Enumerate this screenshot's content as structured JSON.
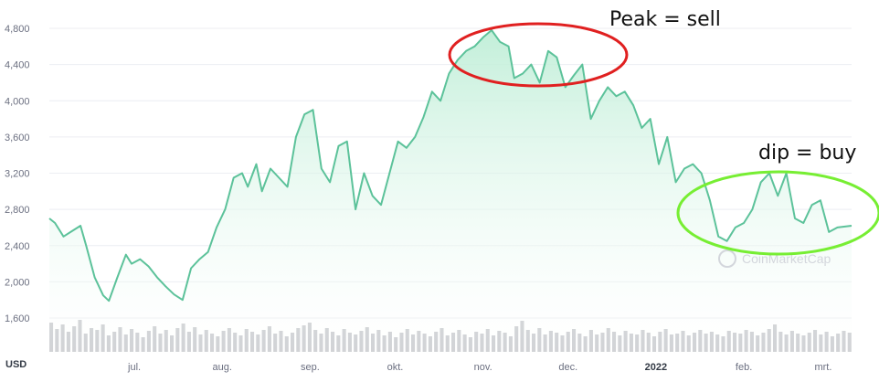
{
  "chart_data": {
    "type": "area",
    "currency_label": "USD",
    "watermark": "CoinMarketCap",
    "y_ticks": [
      1600,
      2000,
      2400,
      2800,
      3200,
      3600,
      4000,
      4400,
      4800
    ],
    "y_tick_labels": [
      "1,600",
      "2,000",
      "2,400",
      "2,800",
      "3,200",
      "3,600",
      "4,000",
      "4,400",
      "4,800"
    ],
    "ylim": [
      1300,
      4950
    ],
    "x_tick_labels": [
      {
        "label": "jul.",
        "day": 30,
        "bold": false
      },
      {
        "label": "aug.",
        "day": 61,
        "bold": false
      },
      {
        "label": "sep.",
        "day": 92,
        "bold": false
      },
      {
        "label": "okt.",
        "day": 122,
        "bold": false
      },
      {
        "label": "nov.",
        "day": 153,
        "bold": false
      },
      {
        "label": "dec.",
        "day": 183,
        "bold": false
      },
      {
        "label": "2022",
        "day": 214,
        "bold": true
      },
      {
        "label": "feb.",
        "day": 245,
        "bold": false
      },
      {
        "label": "mrt.",
        "day": 273,
        "bold": false
      }
    ],
    "x_range_days": [
      0,
      283
    ],
    "series": [
      {
        "x_day": [
          0,
          2,
          5,
          8,
          11,
          13,
          16,
          19,
          21,
          24,
          27,
          29,
          32,
          35,
          38,
          41,
          44,
          47,
          50,
          53,
          56,
          59,
          62,
          65,
          68,
          70,
          73,
          75,
          78,
          81,
          84,
          87,
          90,
          93,
          96,
          99,
          102,
          105,
          108,
          111,
          114,
          117,
          120,
          123,
          126,
          129,
          132,
          135,
          138,
          141,
          144,
          147,
          150,
          153,
          156,
          159,
          162,
          164,
          167,
          170,
          173,
          176,
          179,
          182,
          185,
          188,
          191,
          194,
          197,
          200,
          203,
          206,
          209,
          212,
          215,
          218,
          221,
          224,
          227,
          230,
          233,
          236,
          239,
          242,
          245,
          248,
          251,
          254,
          257,
          260,
          263,
          266,
          269,
          272,
          275,
          278,
          283
        ],
        "y": [
          2700,
          2650,
          2500,
          2560,
          2620,
          2400,
          2050,
          1850,
          1790,
          2050,
          2300,
          2200,
          2250,
          2170,
          2050,
          1950,
          1860,
          1800,
          2150,
          2250,
          2330,
          2600,
          2800,
          3150,
          3200,
          3050,
          3300,
          3000,
          3250,
          3150,
          3050,
          3600,
          3850,
          3900,
          3250,
          3100,
          3500,
          3550,
          2800,
          3200,
          2950,
          2850,
          3200,
          3550,
          3480,
          3600,
          3820,
          4100,
          4000,
          4300,
          4450,
          4550,
          4600,
          4700,
          4780,
          4650,
          4600,
          4250,
          4300,
          4400,
          4200,
          4550,
          4480,
          4150,
          4280,
          4400,
          3800,
          4000,
          4150,
          4050,
          4100,
          3950,
          3700,
          3800,
          3300,
          3600,
          3100,
          3250,
          3300,
          3200,
          2900,
          2500,
          2450,
          2600,
          2650,
          2800,
          3100,
          3200,
          2950,
          3200,
          2700,
          2650,
          2850,
          2900,
          2550,
          2600,
          2620
        ]
      }
    ],
    "volume_bars": [
      32,
      25,
      30,
      22,
      28,
      35,
      20,
      26,
      24,
      30,
      18,
      22,
      27,
      19,
      25,
      21,
      16,
      23,
      28,
      20,
      24,
      18,
      26,
      31,
      22,
      27,
      19,
      24,
      20,
      17,
      23,
      26,
      21,
      18,
      25,
      22,
      19,
      24,
      28,
      20,
      23,
      17,
      21,
      26,
      29,
      32,
      24,
      20,
      26,
      22,
      18,
      25,
      21,
      19,
      23,
      27,
      20,
      24,
      18,
      22,
      16,
      21,
      25,
      19,
      23,
      20,
      17,
      22,
      26,
      18,
      21,
      24,
      19,
      16,
      22,
      20,
      25,
      18,
      23,
      21,
      17,
      28,
      34,
      24,
      20,
      26,
      19,
      23,
      21,
      18,
      22,
      25,
      20,
      17,
      24,
      19,
      21,
      26,
      22,
      18,
      23,
      20,
      19,
      24,
      21,
      17,
      22,
      25,
      19,
      20,
      23,
      18,
      21,
      24,
      20,
      22,
      19,
      17,
      23,
      21,
      20,
      24,
      22,
      18,
      21,
      25,
      30,
      22,
      19,
      23,
      20,
      18,
      21,
      24,
      19,
      22,
      17,
      20,
      23,
      21
    ],
    "line_color": "#5cc29a",
    "fill_color": "#c9f0dd",
    "volume_color": "#c6c8cc"
  },
  "annotations": {
    "peak_text": "Peak = sell",
    "dip_text": "dip = buy",
    "peak_ellipse_color": "#e02020",
    "dip_ellipse_color": "#77ee33"
  }
}
